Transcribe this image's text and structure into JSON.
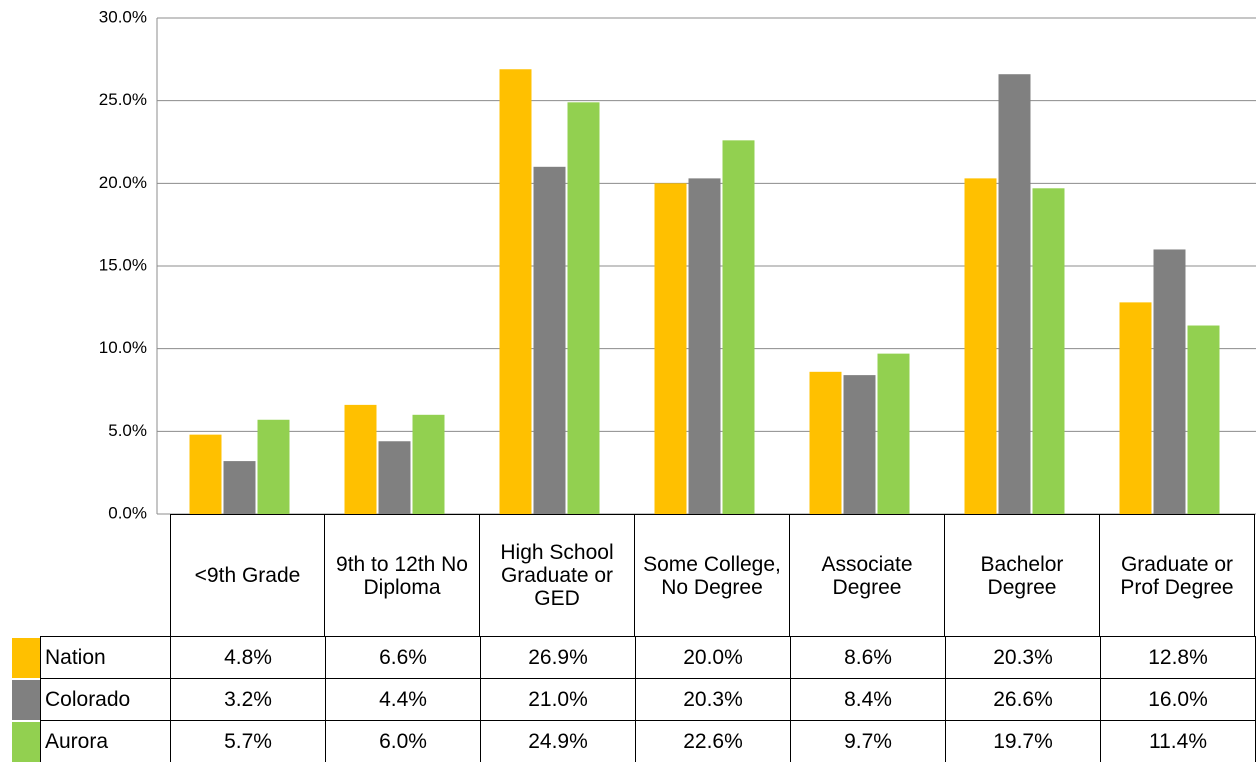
{
  "chart_data": {
    "type": "bar",
    "categories": [
      "<9th Grade",
      "9th to 12th No Diploma",
      "High School Graduate or GED",
      "Some College, No Degree",
      "Associate Degree",
      "Bachelor Degree",
      "Graduate or Prof Degree"
    ],
    "series": [
      {
        "name": "Nation",
        "color": "#FFC000",
        "values": [
          4.8,
          6.6,
          26.9,
          20.0,
          8.6,
          20.3,
          12.8
        ],
        "value_labels": [
          "4.8%",
          "6.6%",
          "26.9%",
          "20.0%",
          "8.6%",
          "20.3%",
          "12.8%"
        ]
      },
      {
        "name": "Colorado",
        "color": "#808080",
        "values": [
          3.2,
          4.4,
          21.0,
          20.3,
          8.4,
          26.6,
          16.0
        ],
        "value_labels": [
          "3.2%",
          "4.4%",
          "21.0%",
          "20.3%",
          "8.4%",
          "26.6%",
          "16.0%"
        ]
      },
      {
        "name": "Aurora",
        "color": "#92D050",
        "values": [
          5.7,
          6.0,
          24.9,
          22.6,
          9.7,
          19.7,
          11.4
        ],
        "value_labels": [
          "5.7%",
          "6.0%",
          "24.9%",
          "22.6%",
          "9.7%",
          "19.7%",
          "11.4%"
        ]
      }
    ],
    "ylim": [
      0,
      30
    ],
    "yticks": [
      {
        "value": 0,
        "label": "0.0%"
      },
      {
        "value": 5,
        "label": "5.0%"
      },
      {
        "value": 10,
        "label": "10.0%"
      },
      {
        "value": 15,
        "label": "15.0%"
      },
      {
        "value": 20,
        "label": "20.0%"
      },
      {
        "value": 25,
        "label": "25.0%"
      },
      {
        "value": 30,
        "label": "30.0%"
      }
    ],
    "grid": true
  }
}
